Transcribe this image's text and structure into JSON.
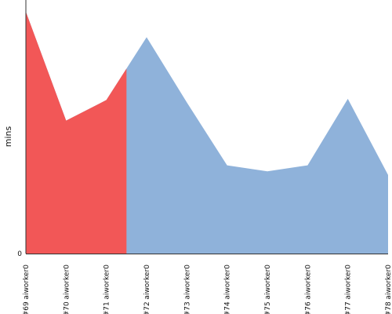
{
  "chart_data": {
    "type": "area",
    "title": "",
    "xlabel": "",
    "ylabel": "mins",
    "categories": [
      "#69 aiworker0",
      "#70 aiworker0",
      "#71 aiworker0",
      "#72 aiworker0",
      "#73 aiworker0",
      "#74 aiworker0",
      "#75 aiworker0",
      "#76 aiworker0",
      "#77 aiworker0",
      "#78 aiworker0"
    ],
    "values": [
      100,
      55,
      63.5,
      89.5,
      62.5,
      36.5,
      34,
      36.5,
      64,
      32.5
    ],
    "highlight_upto_x": 2.5,
    "ylim": [
      0,
      100
    ],
    "y_ticks": [
      0
    ],
    "y_tick_labels": [
      "0"
    ],
    "grid": false,
    "legend": "none",
    "colors": {
      "highlight": "#f25757",
      "normal": "#8fb2da",
      "axis": "#333333"
    }
  }
}
